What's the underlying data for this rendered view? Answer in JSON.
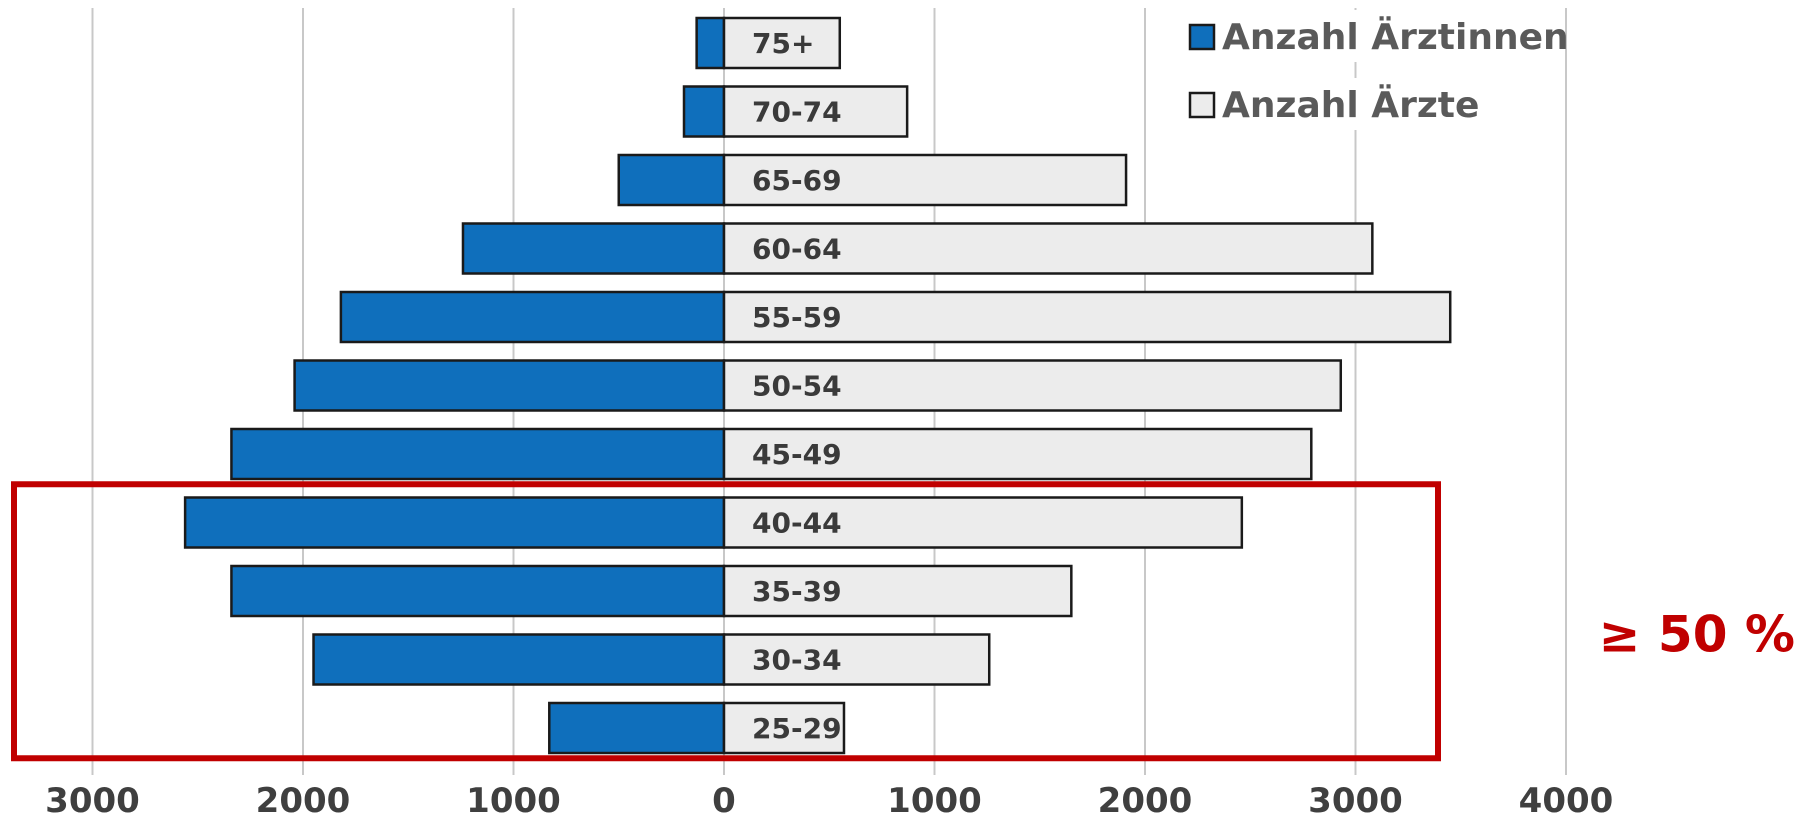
{
  "chart_data": {
    "type": "bar",
    "orientation": "horizontal",
    "layout": "population-pyramid",
    "categories": [
      "75+",
      "70-74",
      "65-69",
      "60-64",
      "55-59",
      "50-54",
      "45-49",
      "40-44",
      "35-39",
      "30-34",
      "25-29"
    ],
    "series": [
      {
        "name": "Anzahl Ärztinnen",
        "side": "left",
        "color": "#0f6fbc",
        "values": [
          130,
          190,
          500,
          1240,
          1820,
          2040,
          2340,
          2560,
          2340,
          1950,
          830
        ]
      },
      {
        "name": "Anzahl Ärzte",
        "side": "right",
        "color": "#ececec",
        "values": [
          550,
          870,
          1910,
          3080,
          3450,
          2930,
          2790,
          2460,
          1650,
          1260,
          570
        ]
      }
    ],
    "x_ticks": [
      -3000,
      -2000,
      -1000,
      0,
      1000,
      2000,
      3000,
      4000
    ],
    "x_tick_labels": [
      "3000",
      "2000",
      "1000",
      "0",
      "1000",
      "2000",
      "3000",
      "4000"
    ],
    "xlim": [
      -3000,
      4000
    ],
    "grid": "vertical",
    "legend_position": "top-right",
    "title": "",
    "xlabel": "",
    "ylabel": "",
    "highlight": {
      "categories": [
        "40-44",
        "35-39",
        "30-34",
        "25-29"
      ],
      "color": "#c00000",
      "annotation": "≥ 50 %"
    }
  }
}
